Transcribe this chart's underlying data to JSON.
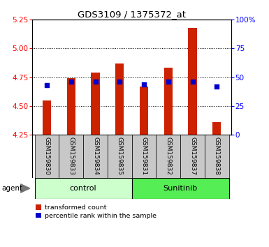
{
  "title": "GDS3109 / 1375372_at",
  "samples": [
    "GSM159830",
    "GSM159833",
    "GSM159834",
    "GSM159835",
    "GSM159831",
    "GSM159832",
    "GSM159837",
    "GSM159838"
  ],
  "red_values": [
    4.55,
    4.74,
    4.79,
    4.87,
    4.67,
    4.83,
    5.18,
    4.36
  ],
  "blue_values": [
    43,
    46,
    46,
    46,
    44,
    46,
    46,
    42
  ],
  "ylim_left": [
    4.25,
    5.25
  ],
  "ylim_right": [
    0,
    100
  ],
  "yticks_left": [
    4.25,
    4.5,
    4.75,
    5.0,
    5.25
  ],
  "yticks_right": [
    0,
    25,
    50,
    75,
    100
  ],
  "ytick_labels_right": [
    "0",
    "25",
    "50",
    "75",
    "100%"
  ],
  "groups": [
    {
      "label": "control",
      "indices": [
        0,
        1,
        2,
        3
      ],
      "color": "#ccffcc"
    },
    {
      "label": "Sunitinib",
      "indices": [
        4,
        5,
        6,
        7
      ],
      "color": "#55ee55"
    }
  ],
  "agent_label": "agent",
  "bar_color": "#cc2200",
  "dot_color": "#0000cc",
  "bar_width": 0.35,
  "grid_color": "#000000",
  "background_color": "#ffffff",
  "tick_bg_color": "#c8c8c8",
  "legend_red": "transformed count",
  "legend_blue": "percentile rank within the sample"
}
